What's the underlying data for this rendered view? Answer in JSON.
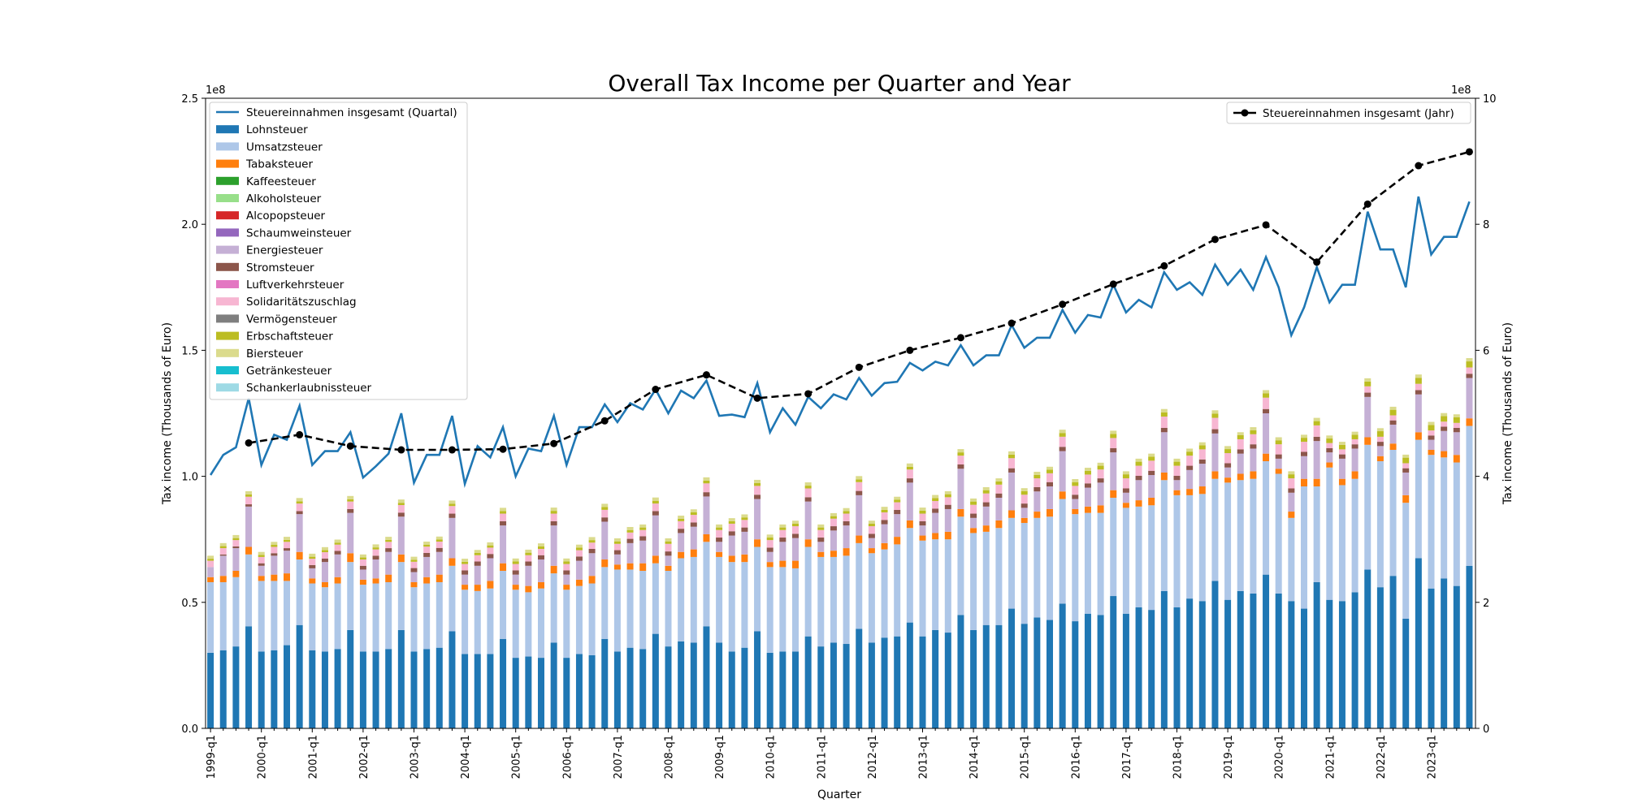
{
  "chart_data": {
    "type": "bar",
    "title": "Overall Tax Income per Quarter and Year",
    "xlabel": "Quarter",
    "ylabel_left": "Tax income (Thousands of Euro)",
    "ylabel_right": "Tax income (Thousands of Euro)",
    "left_axis": {
      "ylim": [
        0,
        250000000
      ],
      "ticks": [
        "0.0",
        "0.5",
        "1.0",
        "1.5",
        "2.0",
        "2.5"
      ],
      "offset_label": "1e8"
    },
    "right_axis": {
      "ylim": [
        0,
        1000000000
      ],
      "ticks": [
        "0",
        "2",
        "4",
        "6",
        "8",
        "10"
      ],
      "offset_label": "1e8"
    },
    "x_tick_labels": [
      "1999-q1",
      "2000-q1",
      "2001-q1",
      "2002-q1",
      "2003-q1",
      "2004-q1",
      "2005-q1",
      "2006-q1",
      "2007-q1",
      "2008-q1",
      "2009-q1",
      "2010-q1",
      "2011-q1",
      "2012-q1",
      "2013-q1",
      "2014-q1",
      "2015-q1",
      "2016-q1",
      "2017-q1",
      "2018-q1",
      "2019-q1",
      "2020-q1",
      "2021-q1",
      "2022-q1",
      "2023-q1"
    ],
    "legend_left": [
      "Steuereinnahmen insgesamt (Quartal)",
      "Lohnsteuer",
      "Umsatzsteuer",
      "Tabaksteuer",
      "Kaffeesteuer",
      "Alkoholsteuer",
      "Alcopopsteuer",
      "Schaumweinsteuer",
      "Energiesteuer",
      "Stromsteuer",
      "Luftverkehrsteuer",
      "Solidaritätszuschlag",
      "Vermögensteuer",
      "Erbschaftsteuer",
      "Biersteuer",
      "Getränkesteuer",
      "Schankerlaubnissteuer"
    ],
    "legend_left_location": "upper left",
    "legend_right": "Steuereinnahmen insgesamt (Jahr)",
    "legend_right_location": "upper right",
    "series_colors": {
      "Steuereinnahmen insgesamt (Quartal)": "#1f77b4",
      "Lohnsteuer": "#1f77b4",
      "Umsatzsteuer": "#aec7e8",
      "Tabaksteuer": "#ff7f0e",
      "Kaffeesteuer": "#2ca02c",
      "Alkoholsteuer": "#98df8a",
      "Alcopopsteuer": "#d62728",
      "Schaumweinsteuer": "#9467bd",
      "Energiesteuer": "#c5b0d5",
      "Stromsteuer": "#8c564b",
      "Luftverkehrsteuer": "#e377c2",
      "Solidaritätszuschlag": "#f7b6d2",
      "Vermögensteuer": "#7f7f7f",
      "Erbschaftsteuer": "#bcbd22",
      "Biersteuer": "#dbdb8d",
      "Getränkesteuer": "#17becf",
      "Schankerlaubnissteuer": "#9edae5",
      "Steuereinnahmen insgesamt (Jahr)": "#000000"
    },
    "lohnsteuer_q": [
      30,
      31,
      32.5,
      40.5,
      30.5,
      31,
      33,
      41,
      31,
      30.5,
      31.5,
      39,
      30.5,
      30.5,
      31.5,
      39,
      30.5,
      31.5,
      32,
      38.5,
      29.5,
      29.5,
      29.5,
      35.5,
      28,
      28.5,
      28,
      34,
      28,
      29.5,
      29,
      35.5,
      30.5,
      32,
      31.5,
      37.5,
      32.5,
      34.5,
      34,
      40.5,
      34,
      30.5,
      32,
      38.5,
      30,
      30.5,
      30.5,
      36.5,
      32.5,
      34,
      33.5,
      39.5,
      34,
      36,
      36.5,
      42,
      36.5,
      39,
      38,
      45,
      39,
      41,
      41,
      47.5,
      41.5,
      44,
      43,
      49.5,
      42.5,
      45.5,
      45,
      52.5,
      45.5,
      48,
      47,
      54.5,
      48,
      51.5,
      50.5,
      58.5,
      51,
      54.5,
      53.5,
      61,
      53.5,
      50.5,
      47.5,
      58,
      51,
      50.5,
      54,
      63,
      56,
      60.5,
      43.5,
      67.5,
      55.5,
      59.5,
      56.5,
      64.5
    ],
    "umsatzsteuer_q": [
      28,
      27,
      27.5,
      28.5,
      28,
      27.5,
      25.5,
      26,
      26.5,
      25.5,
      26,
      27,
      26.5,
      27,
      26.5,
      27,
      25.5,
      26,
      26,
      26,
      25.5,
      25,
      26,
      27,
      27,
      25.5,
      27.5,
      27.5,
      27,
      27,
      28.5,
      28.5,
      32.5,
      31,
      31,
      28,
      30,
      33,
      34,
      33.5,
      34,
      35.5,
      34,
      33.5,
      34,
      33.5,
      33,
      35.5,
      35.5,
      34,
      35,
      34,
      35.5,
      35,
      36.5,
      37.5,
      38,
      36,
      37,
      39,
      38.5,
      37,
      38.5,
      36,
      40,
      39.5,
      41,
      41.5,
      42.5,
      40,
      40.5,
      39,
      42,
      40,
      41.5,
      44,
      44.5,
      41,
      42.5,
      40.5,
      46.5,
      44,
      45.5,
      45,
      47.5,
      33,
      48.5,
      38,
      52.5,
      46,
      45,
      49.5,
      50,
      50,
      46,
      47,
      53,
      48,
      49,
      55.5
    ],
    "tabaksteuer_q": [
      2,
      2.5,
      2.5,
      3,
      2,
      2.5,
      3,
      3,
      2,
      2,
      2.5,
      3.5,
      2,
      2,
      3,
      3,
      2,
      2.5,
      3,
      3,
      2,
      2.5,
      3,
      3,
      2,
      2.5,
      2.5,
      3,
      2,
      2.5,
      3,
      3,
      2,
      2.5,
      3,
      3,
      2,
      2.5,
      3,
      3,
      2,
      2.5,
      3,
      3,
      2,
      2.5,
      3,
      3,
      2,
      2.5,
      3,
      3,
      2,
      2.5,
      3,
      3,
      2,
      2.5,
      3,
      3,
      2,
      2.5,
      3,
      3,
      2,
      2.5,
      3,
      3,
      2,
      2.5,
      3,
      3,
      2,
      2.5,
      3,
      3,
      2,
      2.5,
      3,
      3,
      2,
      2.5,
      3,
      3,
      2,
      2.5,
      3,
      3,
      2,
      2.5,
      3,
      3,
      2,
      2.5,
      3,
      3,
      2,
      2.5,
      3,
      3
    ],
    "energiesteuer_q": [
      4,
      8,
      9,
      16,
      4,
      7.5,
      9,
      15,
      4,
      8,
      9,
      16,
      4,
      7.5,
      9,
      15,
      4,
      8,
      9,
      16,
      4,
      7.5,
      9,
      15,
      4,
      8,
      9,
      16,
      4,
      7.5,
      9,
      15,
      4,
      8,
      9,
      16,
      4,
      7.5,
      9,
      15,
      4,
      8,
      9,
      16,
      4,
      7.5,
      9,
      15,
      4,
      8,
      9,
      16,
      4,
      7.5,
      9,
      15,
      4,
      8,
      9,
      16,
      4,
      7.5,
      9,
      15,
      4,
      8,
      9,
      16,
      4,
      7.5,
      9,
      15,
      4,
      8,
      9,
      16,
      4,
      7.5,
      9,
      15,
      4,
      8,
      9,
      16,
      4,
      7.5,
      9,
      15,
      4,
      8,
      9,
      16,
      4,
      7.5,
      9,
      15,
      4,
      8,
      9,
      16
    ],
    "stromsteuer_q": [
      0,
      0.5,
      0.7,
      0.9,
      1,
      1,
      1,
      1.2,
      1.3,
      1.4,
      1.4,
      1.5,
      1.5,
      1.5,
      1.5,
      1.6,
      1.6,
      1.6,
      1.6,
      1.7,
      1.7,
      1.7,
      1.7,
      1.7,
      1.7,
      1.7,
      1.7,
      1.7,
      1.7,
      1.7,
      1.7,
      1.7,
      1.7,
      1.7,
      1.7,
      1.7,
      1.7,
      1.7,
      1.7,
      1.7,
      1.7,
      1.7,
      1.7,
      1.7,
      1.7,
      1.7,
      1.7,
      1.7,
      1.7,
      1.7,
      1.7,
      1.7,
      1.7,
      1.7,
      1.7,
      1.7,
      1.7,
      1.7,
      1.7,
      1.7,
      1.7,
      1.7,
      1.7,
      1.7,
      1.7,
      1.7,
      1.7,
      1.7,
      1.7,
      1.7,
      1.7,
      1.7,
      1.7,
      1.7,
      1.7,
      1.7,
      1.7,
      1.7,
      1.7,
      1.7,
      1.7,
      1.7,
      1.7,
      1.7,
      1.7,
      1.7,
      1.7,
      1.7,
      1.7,
      1.7,
      1.7,
      1.7,
      1.7,
      1.7,
      1.7,
      1.7,
      1.7,
      1.7,
      1.7,
      1.7
    ],
    "soli_q": [
      2.5,
      2.5,
      2.5,
      3,
      2.5,
      2.5,
      2.5,
      3,
      2.5,
      2.5,
      2.5,
      3,
      2.5,
      2.5,
      2.5,
      3,
      2.5,
      2.5,
      2.5,
      3,
      2.5,
      2.5,
      2.5,
      3,
      2.5,
      2.5,
      2.5,
      3,
      2.5,
      2.5,
      2.5,
      3,
      2.5,
      2.5,
      2.5,
      3,
      3,
      3,
      3,
      3.5,
      3,
      3,
      3,
      3.5,
      3,
      3,
      3,
      3.5,
      3,
      3,
      3,
      3.5,
      3,
      3,
      3,
      3.5,
      3,
      3,
      3,
      3.5,
      3.5,
      3.5,
      3.5,
      4,
      3.5,
      3.5,
      3.5,
      4,
      3.5,
      3.5,
      3.5,
      4,
      4,
      4,
      4,
      4.5,
      4,
      4,
      4,
      4.5,
      4,
      4,
      4,
      4.5,
      4,
      4,
      4,
      4.5,
      2,
      2,
      2,
      2.5,
      2,
      2,
      2,
      2.5,
      2,
      2,
      2,
      2.5
    ],
    "erbschaft_q": [
      0.8,
      0.8,
      0.8,
      0.9,
      0.8,
      0.8,
      0.8,
      0.9,
      0.8,
      0.8,
      0.8,
      0.9,
      0.8,
      0.8,
      0.8,
      0.9,
      0.8,
      0.8,
      0.8,
      0.9,
      0.9,
      0.9,
      0.9,
      1,
      1,
      1,
      1,
      1.1,
      1,
      1,
      1,
      1.1,
      1,
      1,
      1,
      1.1,
      1,
      1,
      1,
      1.1,
      1,
      1,
      1,
      1.1,
      1,
      1,
      1,
      1.1,
      1,
      1,
      1,
      1.1,
      1,
      1,
      1,
      1.1,
      1.2,
      1.2,
      1.2,
      1.3,
      1.3,
      1.3,
      1.3,
      1.4,
      1.4,
      1.4,
      1.4,
      1.5,
      1.5,
      1.5,
      1.5,
      1.6,
      1.6,
      1.6,
      1.6,
      1.7,
      1.6,
      1.6,
      1.6,
      1.7,
      1.6,
      1.6,
      1.6,
      1.7,
      1.6,
      1.6,
      1.6,
      1.7,
      1.8,
      1.8,
      1.8,
      1.9,
      2.2,
      2.2,
      2.2,
      2.4,
      2.2,
      2.2,
      2.2,
      2.4
    ],
    "other_q": [
      1.2,
      1.2,
      1.2,
      1.3,
      1.2,
      1.2,
      1.2,
      1.3,
      1.2,
      1.2,
      1.2,
      1.3,
      1.2,
      1.2,
      1.2,
      1.3,
      1.2,
      1.2,
      1.2,
      1.3,
      1.2,
      1.2,
      1.2,
      1.3,
      1.2,
      1.2,
      1.2,
      1.3,
      1.2,
      1.2,
      1.2,
      1.3,
      1.2,
      1.2,
      1.2,
      1.3,
      1.2,
      1.2,
      1.2,
      1.3,
      1.2,
      1.2,
      1.2,
      1.3,
      1.2,
      1.2,
      1.2,
      1.3,
      1.2,
      1.2,
      1.2,
      1.3,
      1.2,
      1.2,
      1.2,
      1.3,
      1.2,
      1.2,
      1.2,
      1.3,
      1.2,
      1.2,
      1.2,
      1.3,
      1.2,
      1.2,
      1.2,
      1.3,
      1.2,
      1.2,
      1.2,
      1.3,
      1.2,
      1.2,
      1.2,
      1.3,
      1.2,
      1.2,
      1.2,
      1.3,
      1.2,
      1.2,
      1.2,
      1.3,
      1.2,
      1.2,
      1.2,
      1.3,
      1.2,
      1.2,
      1.2,
      1.3,
      1.2,
      1.2,
      1.2,
      1.3,
      1.2,
      1.2,
      1.2,
      1.3
    ],
    "quarterly_total": [
      100.5,
      108.5,
      111.5,
      131,
      104.5,
      116.5,
      114.5,
      128,
      104.5,
      110,
      110,
      117.5,
      99.5,
      104,
      109,
      125,
      97.5,
      108.5,
      108.5,
      124,
      97,
      112,
      107.5,
      119.5,
      100,
      111,
      110,
      124,
      104.5,
      119.5,
      119.5,
      128.5,
      121.5,
      129,
      126.5,
      134.5,
      125,
      134,
      131,
      138,
      124,
      124.5,
      123.5,
      137,
      117.5,
      127,
      120.5,
      131.5,
      127,
      132.5,
      130.5,
      139,
      132,
      137,
      137.5,
      145,
      142,
      145.5,
      144,
      152,
      144,
      148,
      148,
      160,
      151,
      155,
      155,
      166,
      157,
      164,
      163,
      176,
      165,
      170,
      167,
      181,
      174,
      177,
      172,
      184,
      176,
      182,
      174,
      187,
      175,
      156,
      167,
      183,
      169,
      176,
      176,
      205,
      190,
      190,
      175,
      211,
      188,
      195,
      195,
      209
    ],
    "annual_years": [
      "1999",
      "2000",
      "2001",
      "2002",
      "2003",
      "2004",
      "2005",
      "2006",
      "2007",
      "2008",
      "2009",
      "2010",
      "2011",
      "2012",
      "2013",
      "2014",
      "2015",
      "2016",
      "2017",
      "2018",
      "2019",
      "2020",
      "2021",
      "2022",
      "2023"
    ],
    "annual_total": [
      453,
      466,
      448,
      442,
      442,
      443,
      452,
      488,
      538,
      561,
      524,
      531,
      573,
      600,
      620,
      643,
      673,
      705,
      734,
      776,
      799,
      740,
      832,
      893,
      915
    ],
    "units": "millions for quarterly series (left axis x 1e8 scale via 1e6 factor), millions for annual (right axis)"
  }
}
